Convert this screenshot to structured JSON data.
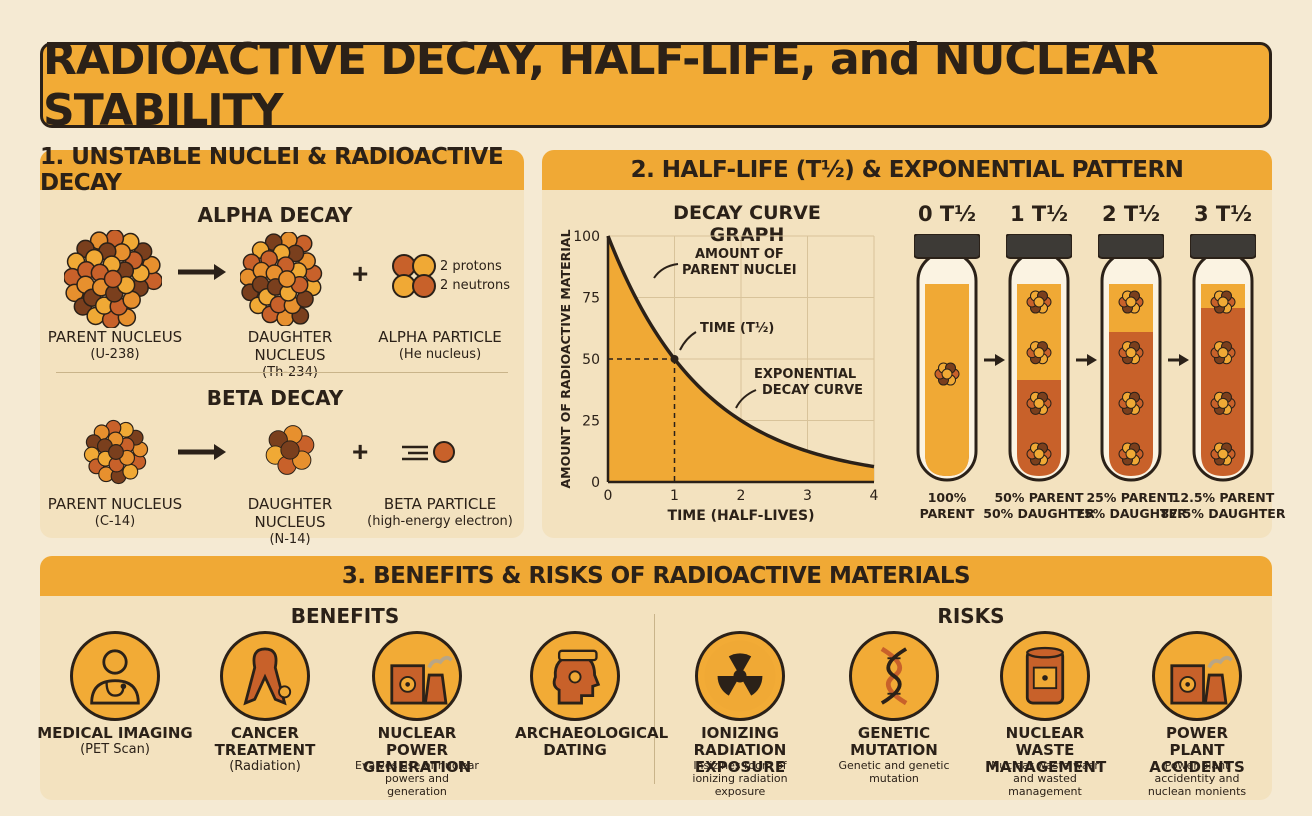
{
  "title": "RADIOACTIVE DECAY, HALF-LIFE, and NUCLEAR STABILITY",
  "section1": {
    "header": "1. UNSTABLE NUCLEI & RADIOACTIVE DECAY",
    "alpha": {
      "heading": "ALPHA DECAY",
      "parent_label": "PARENT NUCLEUS",
      "parent_sub": "(U-238)",
      "daughter_label": "DAUGHTER NUCLEUS",
      "daughter_sub": "(Th-234)",
      "particle_label": "ALPHA PARTICLE",
      "particle_sub": "(He nucleus)",
      "particle_note1": "2 protons",
      "particle_note2": "2 neutrons"
    },
    "beta": {
      "heading": "BETA DECAY",
      "parent_label": "PARENT NUCLEUS",
      "parent_sub": "(C-14)",
      "daughter_label": "DAUGHTER NUCLEUS",
      "daughter_sub": "(N-14)",
      "particle_label": "BETA PARTICLE",
      "particle_sub": "(high-energy electron)"
    },
    "plus": "+"
  },
  "section2": {
    "header": "2. HALF-LIFE (T½) & EXPONENTIAL PATTERN",
    "graph_title": "DECAY CURVE GRAPH",
    "annotation_amount": "AMOUNT OF PARENT NUCLEI",
    "annotation_amount_l1": "AMOUNT OF",
    "annotation_amount_l2": "PARENT NUCLEI",
    "annotation_time": "TIME (T½)",
    "annotation_curve_l1": "EXPONENTIAL",
    "annotation_curve_l2": "DECAY CURVE",
    "tubes": [
      {
        "label": "0 T½",
        "caption1": "100%",
        "caption2": "PARENT",
        "parent_fraction": 1.0
      },
      {
        "label": "1 T½",
        "caption1": "50% PARENT",
        "caption2": "50% DAUGHTER",
        "parent_fraction": 0.5
      },
      {
        "label": "2 T½",
        "caption1": "25% PARENT",
        "caption2": "75% DAUGHTER",
        "parent_fraction": 0.25
      },
      {
        "label": "3 T½",
        "caption1": "12.5% PARENT",
        "caption2": "87.5% DAUGHTER",
        "parent_fraction": 0.125
      }
    ]
  },
  "chart_data": {
    "type": "area",
    "title": "DECAY CURVE GRAPH",
    "xlabel": "TIME (HALF-LIVES)",
    "ylabel": "AMOUNT OF RADIOACTIVE MATERIAL",
    "x": [
      0,
      1,
      2,
      3,
      4
    ],
    "y": [
      100,
      50,
      25,
      12.5,
      6.25
    ],
    "xlim": [
      0,
      4
    ],
    "ylim": [
      0,
      100
    ],
    "xticks": [
      "0",
      "1",
      "2",
      "3",
      "4"
    ],
    "yticks": [
      "0",
      "25",
      "50",
      "75",
      "100"
    ],
    "grid": true,
    "colors": {
      "fill": "#f0a935",
      "line": "#2b2118"
    }
  },
  "section3": {
    "header": "3. BENEFITS & RISKS OF RADIOACTIVE MATERIALS",
    "benefits_heading": "BENEFITS",
    "risks_heading": "RISKS",
    "benefits": [
      {
        "title": "MEDICAL IMAGING",
        "sub": "(PET Scan)",
        "desc": "",
        "icon": "doctor-icon"
      },
      {
        "title": "CANCER TREATMENT",
        "sub": "(Radiation)",
        "desc": "",
        "icon": "awareness-ribbon-icon"
      },
      {
        "title": "NUCLEAR POWER GENERATION",
        "sub": "",
        "desc": "Evalves use of nuclear powers and generation",
        "icon": "power-plant-icon"
      },
      {
        "title": "ARCHAEOLOGICAL DATING",
        "sub": "",
        "desc": "",
        "icon": "archaeology-head-icon"
      }
    ],
    "risks": [
      {
        "title": "IONIZING RADIATION EXPOSURE",
        "sub": "",
        "desc": "Insizines room of ionizing radiation exposure",
        "icon": "radiation-icon"
      },
      {
        "title": "GENETIC MUTATION",
        "sub": "",
        "desc": "Genetic and genetic mutation",
        "icon": "dna-icon"
      },
      {
        "title": "NUCLEAR WASTE MANAGEMENT",
        "sub": "",
        "desc": "Nuclear waste wasr and wasted management",
        "icon": "waste-barrel-icon"
      },
      {
        "title": "POWER PLANT ACCIDENTS",
        "sub": "",
        "desc": "Power plant accidentity and nuclean monients",
        "icon": "cooling-tower-icon"
      }
    ]
  },
  "colors": {
    "orange": "#f0a935",
    "dark": "#2b2118",
    "rust": "#c8612a",
    "cream": "#f3e2bf"
  }
}
